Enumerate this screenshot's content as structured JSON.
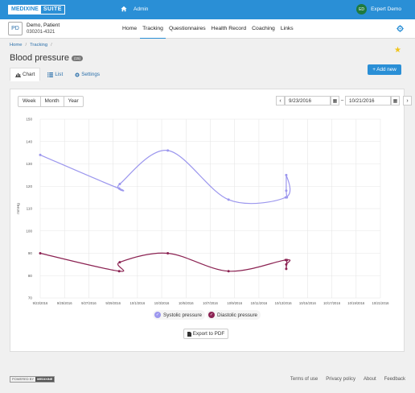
{
  "topbar": {
    "logo_a": "MEDIXINE",
    "logo_b": "SUITE",
    "admin_label": "Admin",
    "user_initials": "ED",
    "user_name": "Expert Demo"
  },
  "patient": {
    "initials": "PD",
    "name": "Demo, Patient",
    "id": "030201-4321"
  },
  "nav": {
    "items": [
      {
        "label": "Home",
        "active": false
      },
      {
        "label": "Tracking",
        "active": true
      },
      {
        "label": "Questionnaires",
        "active": false
      },
      {
        "label": "Health Record",
        "active": false
      },
      {
        "label": "Coaching",
        "active": false
      },
      {
        "label": "Links",
        "active": false
      }
    ]
  },
  "breadcrumb": {
    "home": "Home",
    "tracking": "Tracking",
    "sep": "/"
  },
  "page": {
    "title": "Blood pressure",
    "badge": "(15)"
  },
  "tabs": [
    {
      "label": "Chart",
      "icon": "bar-chart-icon",
      "active": true
    },
    {
      "label": "List",
      "icon": "list-icon",
      "active": false
    },
    {
      "label": "Settings",
      "icon": "gear-icon",
      "active": false
    }
  ],
  "add_button": "+ Add new",
  "range_buttons": [
    "Week",
    "Month",
    "Year"
  ],
  "dates": {
    "from": "9/23/2016",
    "to": "10/21/2016",
    "separator": "–"
  },
  "legend": {
    "systolic": "Systolic pressure",
    "diastolic": "Diastolic pressure"
  },
  "export_button": "Export to PDF",
  "footer": {
    "powered_by": "POWERED BY",
    "powered_brand": "MEDIXINE",
    "links": [
      "Terms of use",
      "Privacy policy",
      "About",
      "Feedback"
    ]
  },
  "colors": {
    "accent": "#2a8fd6",
    "systolic": "#9c97ee",
    "diastolic": "#8b2252"
  },
  "chart_data": {
    "type": "line",
    "ylabel": "mmHg",
    "ylim": [
      70,
      150
    ],
    "yticks": [
      70,
      80,
      90,
      100,
      110,
      120,
      130,
      140,
      150
    ],
    "xticks": [
      "9/23/2016",
      "9/25/2016",
      "9/27/2016",
      "9/29/2016",
      "10/1/2016",
      "10/3/2016",
      "10/5/2016",
      "10/7/2016",
      "10/9/2016",
      "10/11/2016",
      "10/13/2016",
      "10/15/2016",
      "10/17/2016",
      "10/19/2016",
      "10/21/2016"
    ],
    "xlim": [
      0,
      28
    ],
    "series": [
      {
        "name": "Systolic pressure",
        "color": "#9c97ee",
        "points": [
          [
            0.0,
            134
          ],
          [
            6.5,
            119
          ],
          [
            6.55,
            121
          ],
          [
            10.5,
            136
          ],
          [
            15.5,
            114
          ],
          [
            20.2,
            115
          ],
          [
            20.25,
            125
          ],
          [
            20.25,
            118
          ],
          [
            20.3,
            115
          ]
        ]
      },
      {
        "name": "Diastolic pressure",
        "color": "#8b2252",
        "points": [
          [
            0.0,
            90
          ],
          [
            6.5,
            82
          ],
          [
            6.55,
            86
          ],
          [
            10.5,
            90
          ],
          [
            15.5,
            82
          ],
          [
            20.2,
            87
          ],
          [
            20.25,
            85
          ],
          [
            20.25,
            83
          ],
          [
            20.3,
            87
          ]
        ]
      }
    ]
  }
}
